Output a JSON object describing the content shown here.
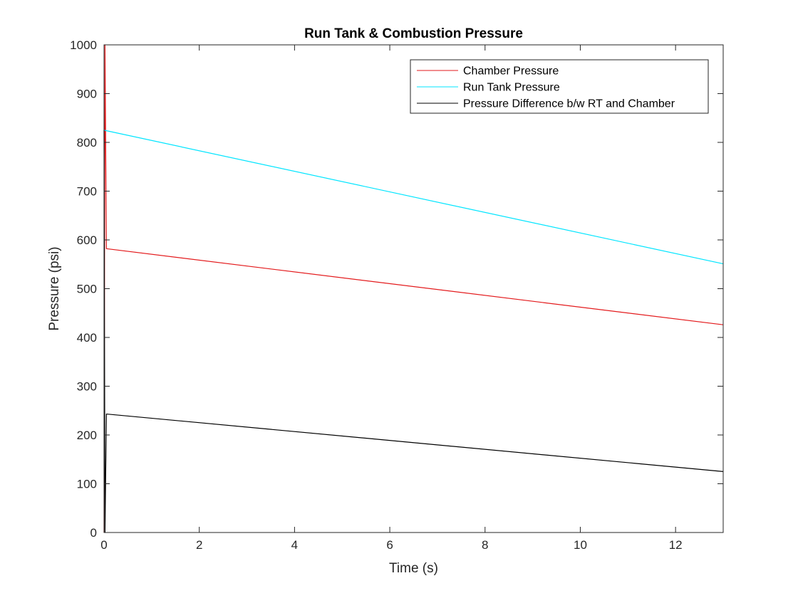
{
  "chart_data": {
    "type": "line",
    "title": "Run Tank & Combustion Pressure",
    "xlabel": "Time (s)",
    "ylabel": "Pressure (psi)",
    "xlim": [
      0,
      13
    ],
    "ylim": [
      0,
      1000
    ],
    "xticks": [
      0,
      2,
      4,
      6,
      8,
      10,
      12
    ],
    "yticks": [
      0,
      100,
      200,
      300,
      400,
      500,
      600,
      700,
      800,
      900,
      1000
    ],
    "grid": false,
    "legend_position": "top-right",
    "series": [
      {
        "name": "Chamber Pressure",
        "color": "#e31a1c",
        "x": [
          0,
          0.02,
          0.05,
          13
        ],
        "y": [
          0,
          1000,
          582,
          426
        ]
      },
      {
        "name": "Run Tank Pressure",
        "color": "#00e5ff",
        "x": [
          0,
          13
        ],
        "y": [
          825,
          551
        ]
      },
      {
        "name": "Pressure Difference b/w RT and Chamber",
        "color": "#000000",
        "x": [
          0,
          0.02,
          0.05,
          13
        ],
        "y": [
          825,
          0,
          243,
          125
        ]
      }
    ]
  }
}
